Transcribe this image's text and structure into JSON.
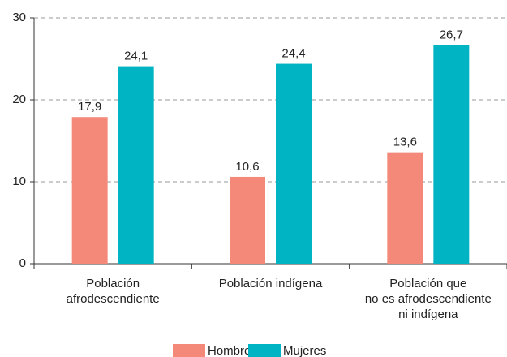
{
  "chart_data": {
    "type": "bar",
    "categories": [
      "Población\nafrodescendiente",
      "Población indígena",
      "Población que\nno es afrodescendiente\nni indígena"
    ],
    "series": [
      {
        "name": "Hombres",
        "color": "#f4897a",
        "values": [
          17.9,
          10.6,
          13.6
        ],
        "value_labels": [
          "17,9",
          "10,6",
          "13,6"
        ]
      },
      {
        "name": "Mujeres",
        "color": "#00b4c3",
        "values": [
          24.1,
          24.4,
          26.7
        ],
        "value_labels": [
          "24,1",
          "24,4",
          "26,7"
        ]
      }
    ],
    "ylim": [
      0,
      30
    ],
    "yticks": [
      0,
      10,
      20,
      30
    ],
    "grid": true,
    "legend": "bottom"
  }
}
